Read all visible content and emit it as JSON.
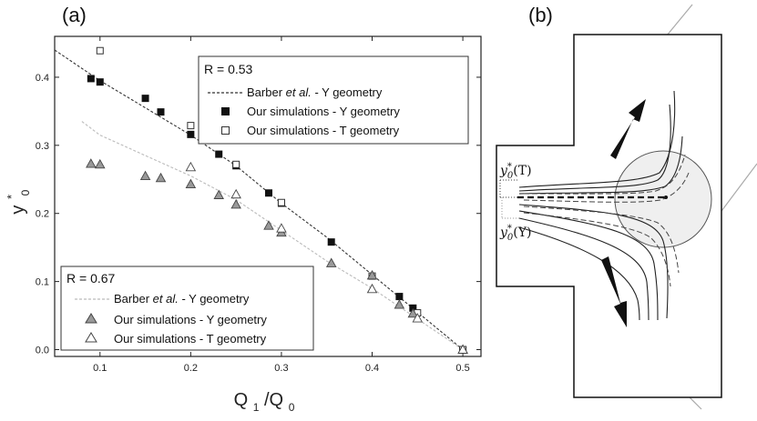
{
  "panel_a": {
    "label": "(a)"
  },
  "panel_b": {
    "label": "(b)",
    "label_top": {
      "pre": "y",
      "sub": "0",
      "sup": "*",
      "post": "(T)"
    },
    "label_bottom": {
      "pre": "y",
      "sub": "0",
      "sup": "*",
      "post": "(Y)"
    }
  },
  "chart_data": {
    "type": "scatter",
    "title": "",
    "xlabel": {
      "main": "Q",
      "sub": "1",
      "sep": "/Q",
      "sub2": "0"
    },
    "ylabel": {
      "main": "y",
      "sup": "*",
      "sub": "0"
    },
    "xlim": [
      0.05,
      0.52
    ],
    "ylim": [
      -0.01,
      0.46
    ],
    "xticks": [
      "0.1",
      "0.2",
      "0.3",
      "0.4",
      "0.5"
    ],
    "yticks": [
      "0.0",
      "0.1",
      "0.2",
      "0.3",
      "0.4"
    ],
    "legends": [
      {
        "title": "R = 0.53",
        "placement": "top-right",
        "entries": [
          {
            "pre": "Barber ",
            "em": "et al.",
            "post": " - Y geometry",
            "marker": "dash-dark"
          },
          {
            "pre": "Our simulations - Y geometry",
            "em": "",
            "post": "",
            "marker": "square-filled"
          },
          {
            "pre": "Our simulations - T geometry",
            "em": "",
            "post": "",
            "marker": "square-open"
          }
        ]
      },
      {
        "title": "R = 0.67",
        "placement": "bottom-left",
        "entries": [
          {
            "pre": "Barber  ",
            "em": "et al.",
            "post": " - Y geometry",
            "marker": "dash-light"
          },
          {
            "pre": "Our simulations - Y geometry",
            "em": "",
            "post": "",
            "marker": "triangle-filled"
          },
          {
            "pre": "Our simulations - T geometry",
            "em": "",
            "post": "",
            "marker": "triangle-open"
          }
        ]
      }
    ],
    "series": [
      {
        "style": "dash-dark",
        "x": [
          0.05,
          0.1,
          0.15,
          0.2,
          0.25,
          0.3,
          0.35,
          0.4,
          0.45,
          0.5
        ],
        "y": [
          0.44,
          0.395,
          0.355,
          0.315,
          0.27,
          0.215,
          0.165,
          0.11,
          0.055,
          0.0
        ]
      },
      {
        "style": "dash-light",
        "x": [
          0.08,
          0.1,
          0.15,
          0.2,
          0.25,
          0.3,
          0.35,
          0.4,
          0.45,
          0.5
        ],
        "y": [
          0.335,
          0.315,
          0.285,
          0.255,
          0.22,
          0.175,
          0.13,
          0.09,
          0.045,
          0.0
        ]
      },
      {
        "style": "square-filled",
        "x": [
          0.09,
          0.1,
          0.15,
          0.167,
          0.2,
          0.231,
          0.25,
          0.286,
          0.3,
          0.355,
          0.43,
          0.445,
          0.5
        ],
        "y": [
          0.398,
          0.393,
          0.369,
          0.349,
          0.316,
          0.287,
          0.27,
          0.23,
          0.215,
          0.158,
          0.078,
          0.061,
          0.0
        ]
      },
      {
        "style": "square-open",
        "x": [
          0.1,
          0.2,
          0.25,
          0.3,
          0.4,
          0.45,
          0.5
        ],
        "y": [
          0.439,
          0.329,
          0.272,
          0.216,
          0.108,
          0.054,
          0.0
        ]
      },
      {
        "style": "triangle-filled",
        "x": [
          0.09,
          0.1,
          0.15,
          0.167,
          0.2,
          0.231,
          0.25,
          0.286,
          0.3,
          0.355,
          0.4,
          0.43,
          0.445,
          0.5
        ],
        "y": [
          0.273,
          0.272,
          0.255,
          0.252,
          0.243,
          0.227,
          0.213,
          0.182,
          0.172,
          0.127,
          0.109,
          0.066,
          0.053,
          0.0
        ]
      },
      {
        "style": "triangle-open",
        "x": [
          0.2,
          0.25,
          0.3,
          0.4,
          0.45,
          0.5
        ],
        "y": [
          0.268,
          0.228,
          0.178,
          0.089,
          0.046,
          0.0
        ]
      }
    ]
  }
}
